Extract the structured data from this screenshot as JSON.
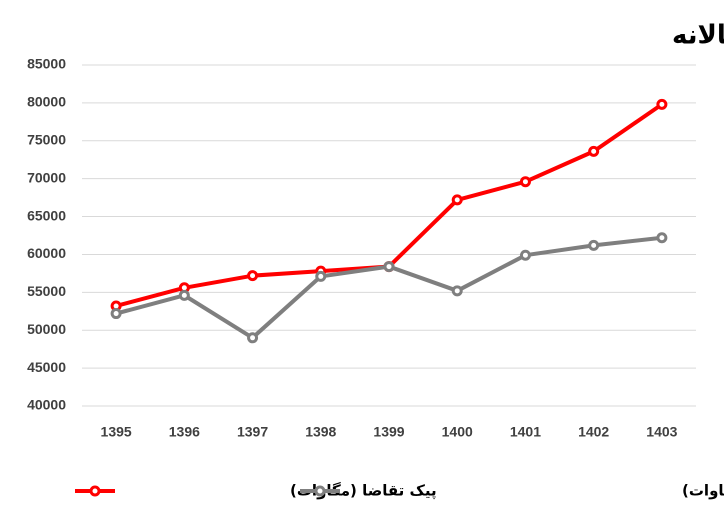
{
  "chart_data": {
    "type": "line",
    "title": "شدت گرفتن کمبود برق به صورت سالانه",
    "categories": [
      "1395",
      "1396",
      "1397",
      "1398",
      "1399",
      "1400",
      "1401",
      "1402",
      "1403"
    ],
    "series": [
      {
        "name": "پیک تقاضا (مگاوات)",
        "color": "#ff0000",
        "values": [
          53200,
          55600,
          57200,
          57800,
          58400,
          67200,
          69600,
          73600,
          79800
        ]
      },
      {
        "name": "قدرت تامین شده در لحظه پیک (مگاوات)",
        "color": "#7f7f7f",
        "values": [
          52200,
          54600,
          49000,
          57100,
          58400,
          55200,
          59900,
          61200,
          62200
        ]
      }
    ],
    "ylim": [
      40000,
      85000
    ],
    "yticks": [
      40000,
      45000,
      50000,
      55000,
      60000,
      65000,
      70000,
      75000,
      80000,
      85000
    ],
    "grid": true
  }
}
